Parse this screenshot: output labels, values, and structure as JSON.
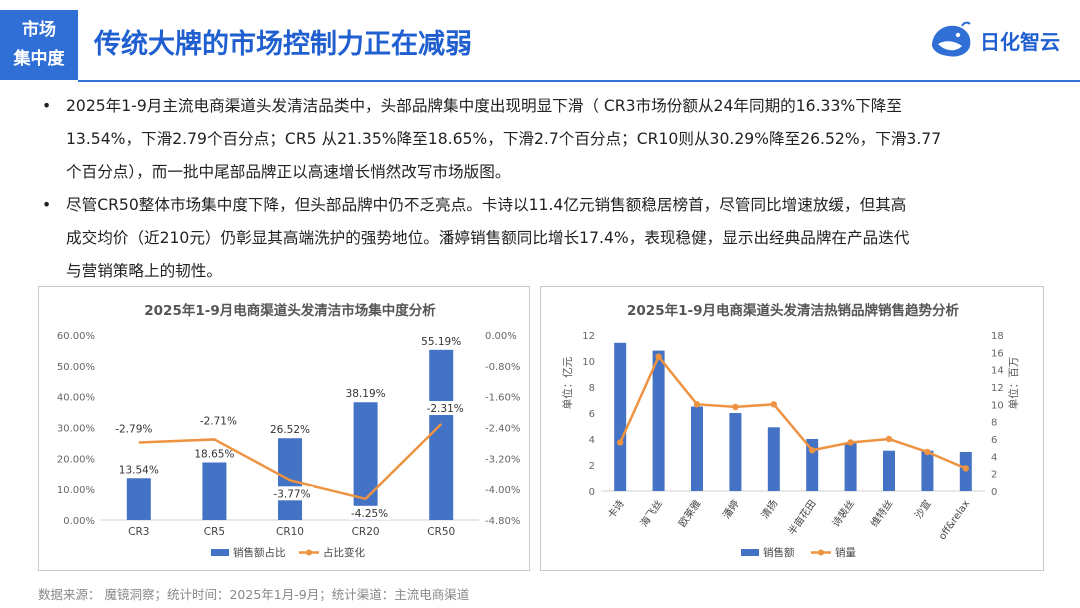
{
  "header": {
    "tag_line1": "市场",
    "tag_line2": "集中度",
    "title": "传统大牌的市场控制力正在减弱",
    "logo_text": "日化智云"
  },
  "bullets": [
    {
      "lines": [
        "2025年1-9月主流电商渠道头发清洁品类中，头部品牌集中度出现明显下滑（ CR3市场份额从24年同期的16.33%下降至",
        "13.54%，下滑2.79个百分点；CR5 从21.35%降至18.65%，下滑2.7个百分点；CR10则从30.29%降至26.52%，下滑3.77",
        "个百分点），而一批中尾部品牌正以高速增长悄然改写市场版图。"
      ]
    },
    {
      "lines": [
        "尽管CR50整体市场集中度下降，但头部品牌中仍不乏亮点。卡诗以11.4亿元销售额稳居榜首，尽管同比增速放缓，但其高",
        "成交均价（近210元）仍彰显其高端洗护的强势地位。潘婷销售额同比增长17.4%，表现稳健，显示出经典品牌在产品迭代",
        "与营销策略上的韧性。"
      ]
    }
  ],
  "chart_data": [
    {
      "type": "bar",
      "title": "2025年1-9月电商渠道头发清洁市场集中度分析",
      "categories": [
        "CR3",
        "CR5",
        "CR10",
        "CR20",
        "CR50"
      ],
      "series": [
        {
          "name": "销售额占比",
          "type": "bar",
          "axis": "left",
          "values": [
            13.54,
            18.65,
            26.52,
            38.19,
            55.19
          ],
          "labels": [
            "13.54%",
            "18.65%",
            "26.52%",
            "38.19%",
            "55.19%"
          ]
        },
        {
          "name": "占比变化",
          "type": "line",
          "axis": "right",
          "values": [
            -2.79,
            -2.71,
            -3.77,
            -4.25,
            -2.31
          ],
          "labels": [
            "-2.79%",
            "-2.71%",
            "-3.77%",
            "-4.25%",
            "-2.31%"
          ]
        }
      ],
      "ylim_left": [
        0,
        60
      ],
      "yticks_left": [
        "0.00%",
        "10.00%",
        "20.00%",
        "30.00%",
        "40.00%",
        "50.00%",
        "60.00%"
      ],
      "ylim_right": [
        -4.8,
        0
      ],
      "yticks_right": [
        "-4.80%",
        "-4.00%",
        "-3.20%",
        "-2.40%",
        "-1.60%",
        "-0.80%",
        "0.00%"
      ],
      "legend_position": "bottom",
      "bar_color": "#4472c4",
      "line_color": "#ed9341"
    },
    {
      "type": "bar",
      "title": "2025年1-9月电商渠道头发清洁热销品牌销售趋势分析",
      "categories": [
        "卡诗",
        "海飞丝",
        "欧莱雅",
        "潘婷",
        "清扬",
        "半亩花田",
        "诗裴丝",
        "维特丝",
        "沙宣",
        "off&relax"
      ],
      "series": [
        {
          "name": "销售额",
          "type": "bar",
          "axis": "left",
          "values": [
            11.4,
            10.8,
            6.5,
            6.0,
            4.9,
            4.0,
            3.7,
            3.1,
            3.1,
            3.0
          ]
        },
        {
          "name": "销量",
          "type": "line",
          "axis": "right",
          "values": [
            5.6,
            15.5,
            10.0,
            9.7,
            10.0,
            4.7,
            5.6,
            6.0,
            4.5,
            2.6
          ]
        }
      ],
      "ylabel_left": "单位：亿元",
      "ylabel_right": "单位：百万",
      "ylim_left": [
        0,
        12
      ],
      "yticks_left": [
        "0",
        "2",
        "4",
        "6",
        "8",
        "10",
        "12"
      ],
      "ylim_right": [
        0,
        18
      ],
      "yticks_right": [
        "0",
        "2",
        "4",
        "6",
        "8",
        "10",
        "12",
        "14",
        "16",
        "18"
      ],
      "legend_position": "bottom",
      "bar_color": "#4472c4",
      "line_color": "#ed9341"
    }
  ],
  "footer": {
    "source": "数据来源：  魔镜洞察；统计时间：2025年1月-9月；统计渠道：主流电商渠道"
  }
}
